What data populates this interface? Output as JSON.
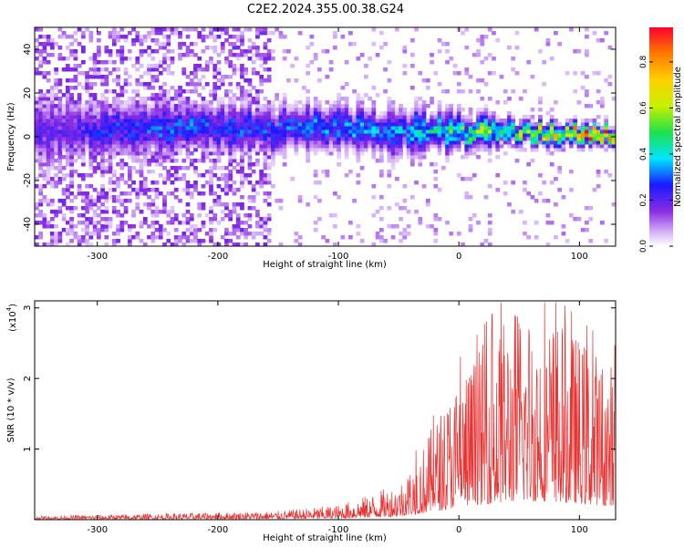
{
  "title": "C2E2.2024.355.00.38.G24",
  "chart_data": [
    {
      "type": "heatmap",
      "xlabel": "Height of straight line (km)",
      "ylabel": "Frequency (Hz)",
      "xlim": [
        -352,
        130
      ],
      "ylim": [
        -50,
        50
      ],
      "xticks": [
        -300,
        -200,
        -100,
        0,
        100
      ],
      "yticks": [
        -40,
        -20,
        0,
        20,
        40
      ],
      "colorbar": {
        "label": "Normalized spectral amplitude",
        "range": [
          0,
          0.95
        ],
        "ticks": [
          0.0,
          0.2,
          0.4,
          0.6,
          0.8
        ]
      },
      "ridge_profile": {
        "x": [
          -340,
          -300,
          -250,
          -200,
          -150,
          -100,
          -50,
          0,
          50,
          100,
          125
        ],
        "center": [
          2,
          3,
          4,
          4,
          3,
          4,
          3,
          2,
          2,
          1,
          1
        ],
        "halfwidth": [
          12,
          10,
          9,
          8,
          8,
          8,
          8,
          6,
          4,
          3,
          3
        ],
        "peak_amp": [
          0.2,
          0.25,
          0.3,
          0.3,
          0.3,
          0.35,
          0.35,
          0.5,
          0.6,
          0.85,
          0.9
        ]
      },
      "noise_until_x": -155
    },
    {
      "type": "line",
      "xlabel": "Height of straight line (km)",
      "ylabel": "SNR (10 * v/v)",
      "y_multiplier": "(x10",
      "y_multiplier_exp": "4",
      "y_multiplier_close": ")",
      "xlim": [
        -352,
        130
      ],
      "ylim": [
        0,
        3.1
      ],
      "xticks": [
        -300,
        -200,
        -100,
        0,
        100
      ],
      "yticks": [
        1,
        2,
        3
      ],
      "color": "#e83333",
      "series": [
        {
          "x": [
            -350,
            -300,
            -250,
            -200,
            -150,
            -100,
            -75,
            -50,
            -30,
            -10,
            0,
            25,
            50,
            75,
            100,
            125
          ],
          "y": [
            0.03,
            0.04,
            0.05,
            0.06,
            0.07,
            0.12,
            0.2,
            0.3,
            0.6,
            1.0,
            1.2,
            1.5,
            1.8,
            1.7,
            1.5,
            1.3
          ]
        }
      ]
    }
  ]
}
